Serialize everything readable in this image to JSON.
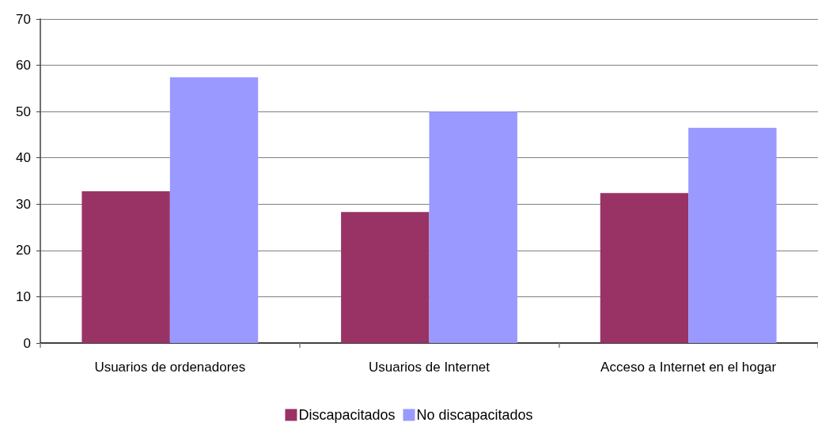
{
  "chart_data": {
    "type": "bar",
    "categories": [
      "Usuarios de ordenadores",
      "Usuarios de Internet",
      "Acceso a Internet en el hogar"
    ],
    "series": [
      {
        "name": "Discapacitados",
        "color": "#993366",
        "values": [
          32.8,
          28.3,
          32.4
        ]
      },
      {
        "name": "No discapacitados",
        "color": "#9999ff",
        "values": [
          57.4,
          50.0,
          46.5
        ]
      }
    ],
    "ylim": [
      0,
      70
    ],
    "yticks": [
      0,
      10,
      20,
      30,
      40,
      50,
      60,
      70
    ],
    "grid": "y",
    "legend": "bottom"
  }
}
